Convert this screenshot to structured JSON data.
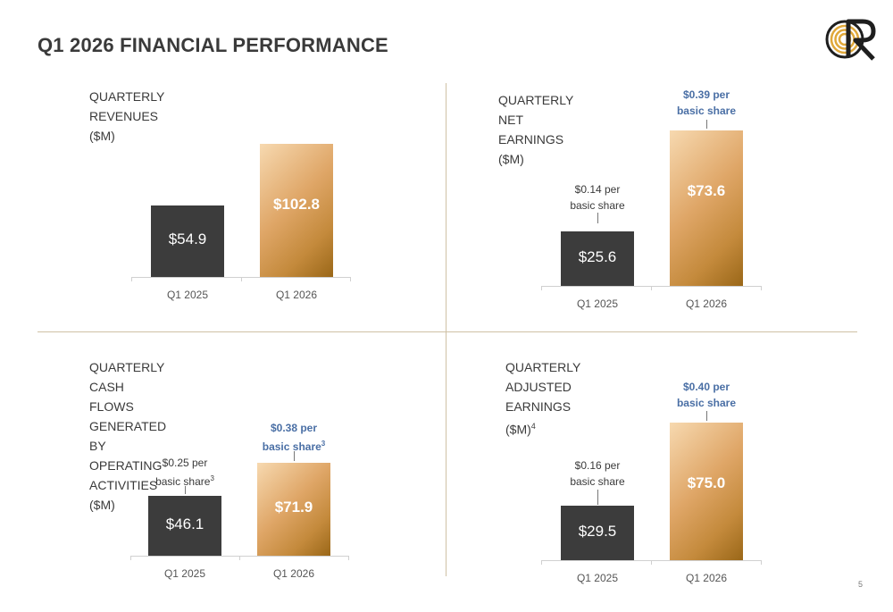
{
  "slide": {
    "title": "Q1 2026 FINANCIAL PERFORMANCE",
    "page_number": "5"
  },
  "colors": {
    "dark_bar": "#3c3c3c",
    "gold_bar": "#c48a3c",
    "eps_highlight": "#4a6fa5",
    "divider": "#cfc1a5"
  },
  "chart_data": [
    {
      "type": "bar",
      "title": "QUARTERLY REVENUES ($M)",
      "categories": [
        "Q1 2025",
        "Q1 2026"
      ],
      "values": [
        54.9,
        102.8
      ],
      "data_labels": [
        "$54.9",
        "$102.8"
      ],
      "annotations": [
        "",
        ""
      ],
      "ylim": [
        0,
        102.8
      ]
    },
    {
      "type": "bar",
      "title": "QUARTERLY NET EARNINGS ($M)",
      "categories": [
        "Q1 2025",
        "Q1 2026"
      ],
      "values": [
        25.6,
        73.6
      ],
      "data_labels": [
        "$25.6",
        "$73.6"
      ],
      "annotations": [
        "$0.14 per\nbasic share",
        "$0.39 per\nbasic share"
      ],
      "ylim": [
        0,
        73.6
      ]
    },
    {
      "type": "bar",
      "title": "QUARTERLY CASH FLOWS GENERATED BY OPERATING\nACTIVITIES ($M)",
      "categories": [
        "Q1 2025",
        "Q1 2026"
      ],
      "values": [
        46.1,
        71.9
      ],
      "data_labels": [
        "$46.1",
        "$71.9"
      ],
      "annotations": [
        "$0.25 per\nbasic share",
        "$0.38 per\nbasic share"
      ],
      "annotation_footnote": "3",
      "ylim": [
        0,
        71.9
      ]
    },
    {
      "type": "bar",
      "title": "QUARTERLY ADJUSTED EARNINGS ($M)",
      "title_footnote": "4",
      "categories": [
        "Q1 2025",
        "Q1 2026"
      ],
      "values": [
        29.5,
        75.0
      ],
      "data_labels": [
        "$29.5",
        "$75.0"
      ],
      "annotations": [
        "$0.16 per\nbasic share",
        "$0.40 per\nbasic share"
      ],
      "ylim": [
        0,
        75.0
      ]
    }
  ]
}
